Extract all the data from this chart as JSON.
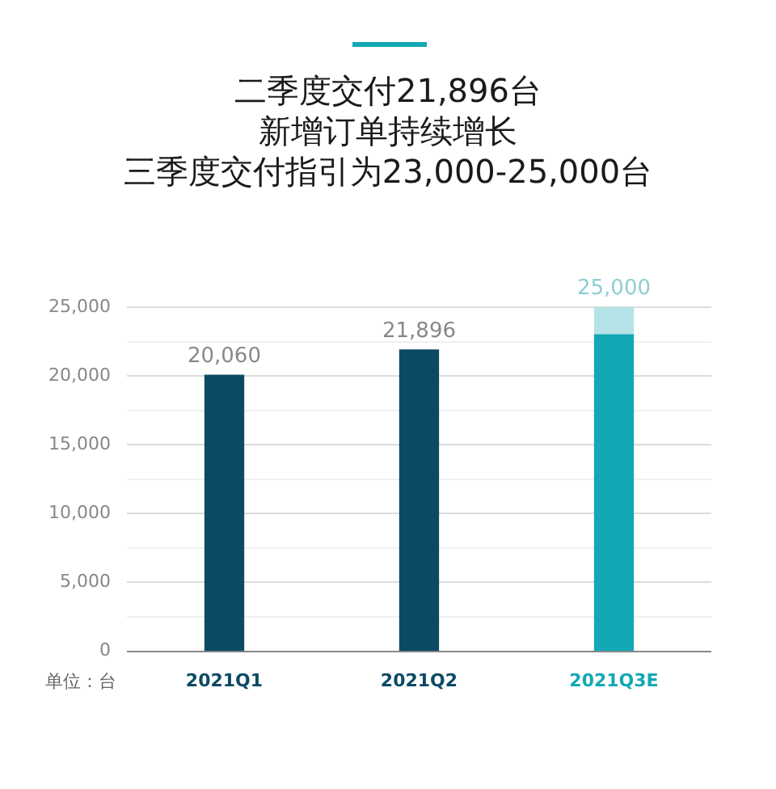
{
  "chart_data": {
    "type": "bar",
    "title": "二季度交付21,896台",
    "subtitle": "新增订单持续增长",
    "categories": [
      "2021Q1",
      "2021Q2",
      "2021Q3E"
    ],
    "stacked": true,
    "series": [
      {
        "colors": [
          "#0c4a63",
          "#0c4a63",
          "#13a8b5"
        ],
        "values": [
          20060,
          21896,
          23000
        ],
        "value_labels": [
          "20,060",
          "21,896",
          null
        ]
      },
      {
        "color": "#b5e3e8",
        "values": [
          null,
          null,
          2000
        ]
      }
    ],
    "totals": [
      null,
      null,
      "25,000"
    ],
    "ylim": [
      0,
      25000
    ],
    "yticks": [
      0,
      {
        "value": 2500,
        "label": null
      },
      {
        "value": 5000,
        "label": "5,000"
      },
      {
        "value": 7500,
        "label": null
      },
      {
        "value": 10000,
        "label": "10,000"
      },
      {
        "value": 12500,
        "label": null
      },
      {
        "value": 15000,
        "label": "15,000"
      },
      {
        "value": 17500,
        "label": null
      },
      {
        "value": 20000,
        "label": "20,000"
      },
      {
        "value": 22500,
        "label": null
      },
      {
        "value": 25000,
        "label": "25,000"
      }
    ],
    "grid": "y",
    "legend": false,
    "annotations": [
      "三季度交付指引为23,000-25,000台",
      "单位：台"
    ]
  }
}
